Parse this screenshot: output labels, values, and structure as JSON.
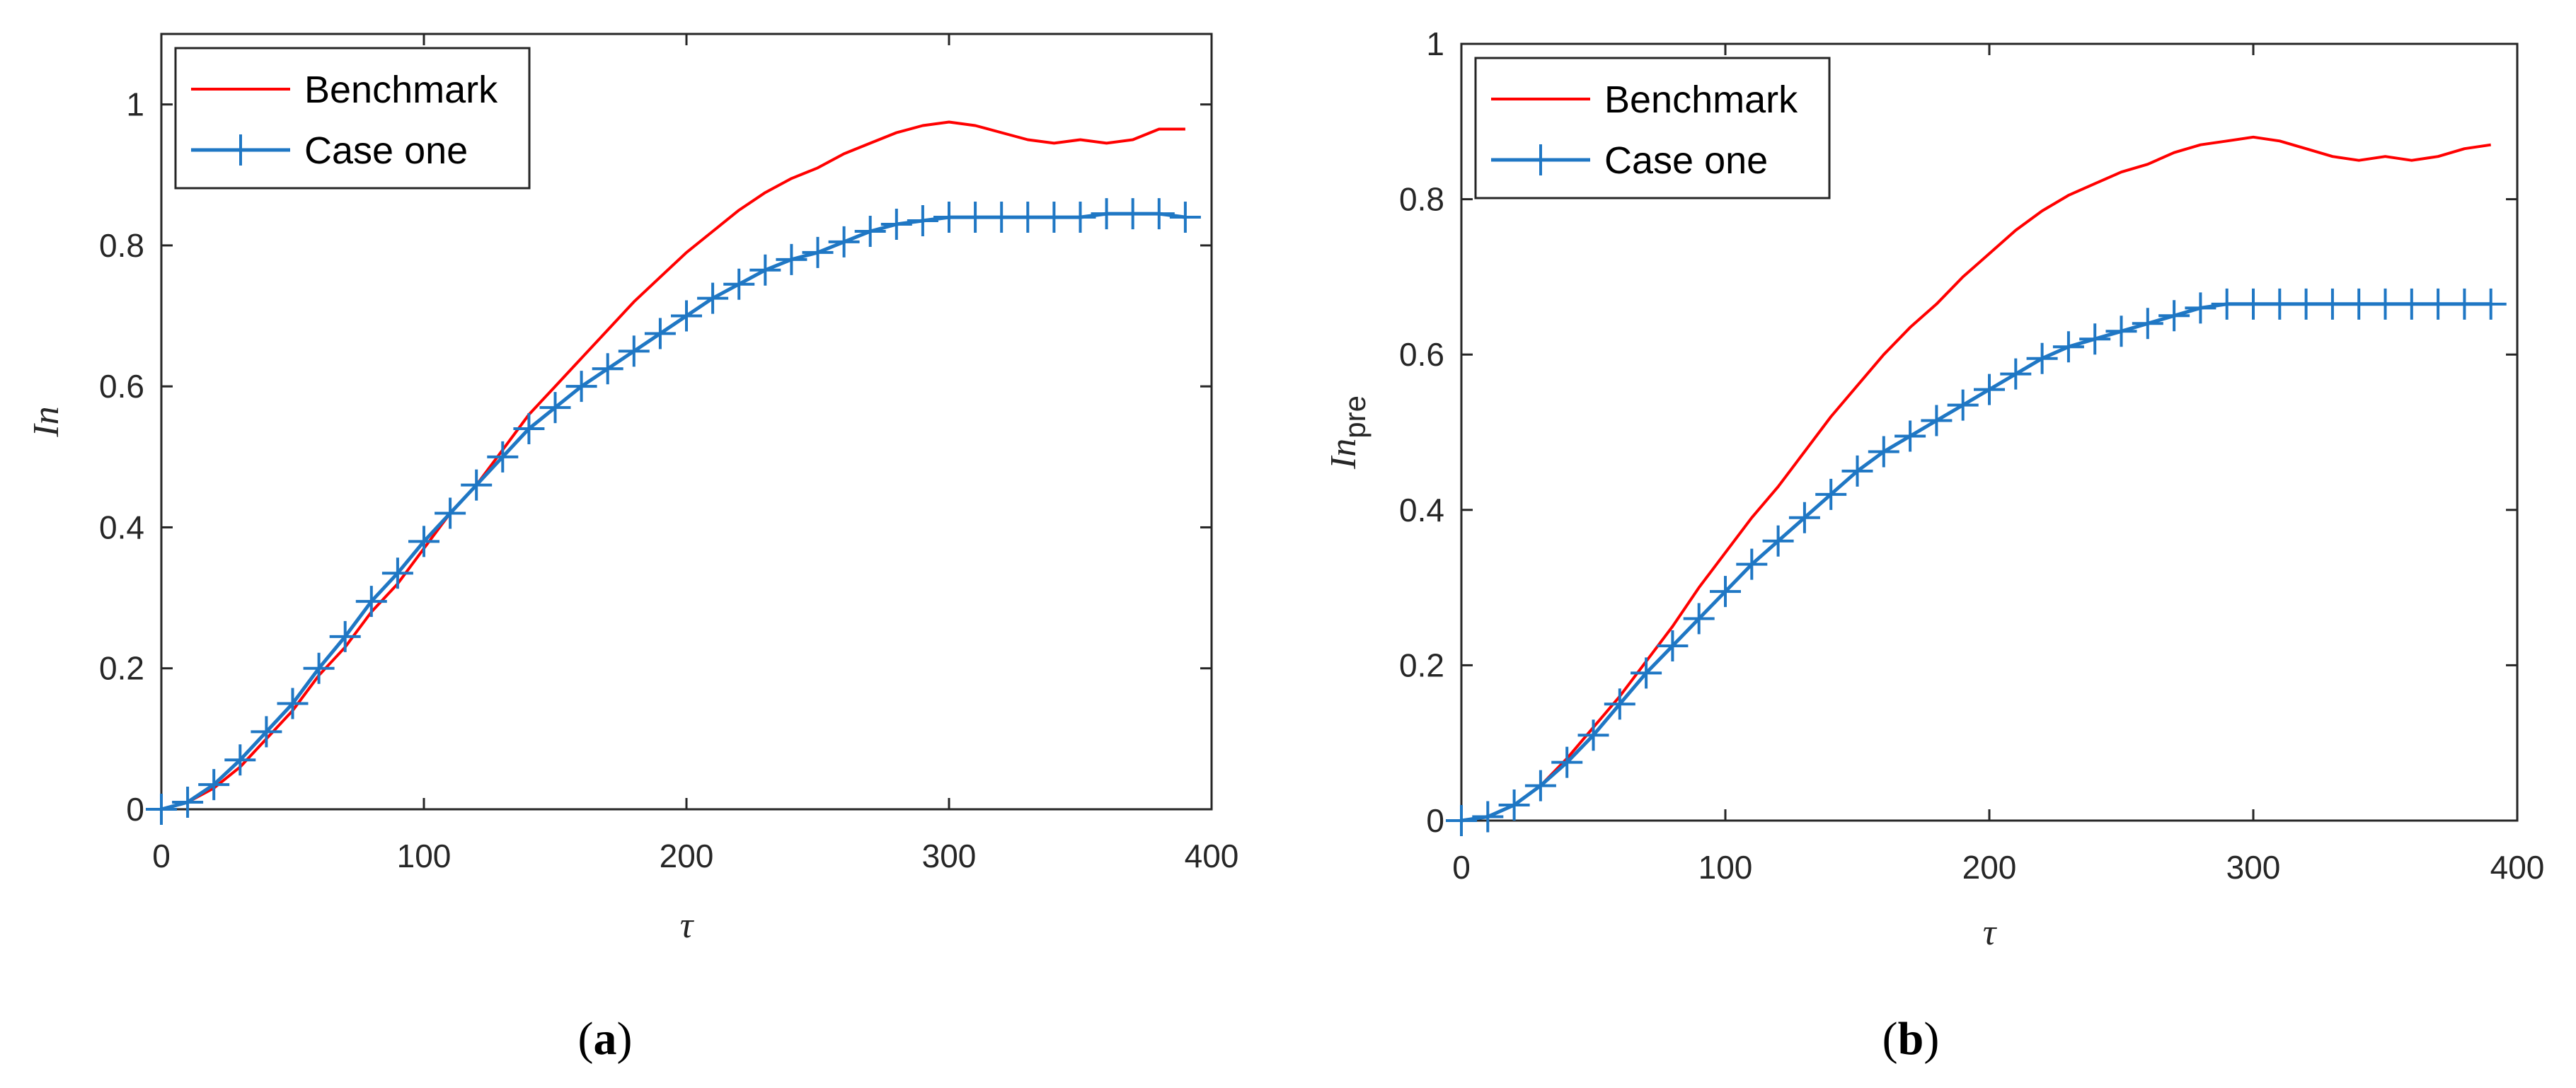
{
  "chart_data": [
    {
      "id": "a",
      "type": "line",
      "caption": {
        "open": "(",
        "letter": "a",
        "close": ")"
      },
      "xlabel": "τ",
      "ylabel": "In",
      "ylabel_sub": "",
      "xlim": [
        0,
        400
      ],
      "ylim": [
        0,
        1.1
      ],
      "xticks": [
        0,
        100,
        200,
        300,
        400
      ],
      "yticks": [
        0,
        0.2,
        0.4,
        0.6,
        0.8,
        1
      ],
      "xtick_labels": [
        "0",
        "100",
        "200",
        "300",
        "400"
      ],
      "ytick_labels": [
        "0",
        "0.2",
        "0.4",
        "0.6",
        "0.8",
        "1"
      ],
      "legend_position": "top-left",
      "series": [
        {
          "name": "Benchmark",
          "color": "#ff0000",
          "marker": "none",
          "x": [
            0,
            10,
            20,
            30,
            40,
            50,
            60,
            70,
            80,
            90,
            100,
            110,
            120,
            130,
            140,
            150,
            160,
            170,
            180,
            190,
            200,
            210,
            220,
            230,
            240,
            250,
            260,
            270,
            280,
            290,
            300,
            310,
            320,
            330,
            340,
            350,
            360,
            370,
            380,
            390
          ],
          "y": [
            0,
            0.01,
            0.03,
            0.06,
            0.1,
            0.14,
            0.19,
            0.23,
            0.28,
            0.32,
            0.37,
            0.42,
            0.46,
            0.51,
            0.56,
            0.6,
            0.64,
            0.68,
            0.72,
            0.755,
            0.79,
            0.82,
            0.85,
            0.875,
            0.895,
            0.91,
            0.93,
            0.945,
            0.96,
            0.97,
            0.975,
            0.97,
            0.96,
            0.95,
            0.945,
            0.95,
            0.945,
            0.95,
            0.965,
            0.965
          ]
        },
        {
          "name": "Case one",
          "color": "#1f77c4",
          "marker": "+",
          "x": [
            0,
            10,
            20,
            30,
            40,
            50,
            60,
            70,
            80,
            90,
            100,
            110,
            120,
            130,
            140,
            150,
            160,
            170,
            180,
            190,
            200,
            210,
            220,
            230,
            240,
            250,
            260,
            270,
            280,
            290,
            300,
            310,
            320,
            330,
            340,
            350,
            360,
            370,
            380,
            390
          ],
          "y": [
            0,
            0.01,
            0.035,
            0.07,
            0.11,
            0.15,
            0.2,
            0.245,
            0.295,
            0.335,
            0.38,
            0.42,
            0.46,
            0.5,
            0.54,
            0.57,
            0.6,
            0.625,
            0.65,
            0.675,
            0.7,
            0.725,
            0.745,
            0.765,
            0.78,
            0.79,
            0.805,
            0.82,
            0.83,
            0.835,
            0.84,
            0.84,
            0.84,
            0.84,
            0.84,
            0.84,
            0.845,
            0.845,
            0.845,
            0.84
          ]
        }
      ]
    },
    {
      "id": "b",
      "type": "line",
      "caption": {
        "open": "(",
        "letter": "b",
        "close": ")"
      },
      "xlabel": "τ",
      "ylabel": "In",
      "ylabel_sub": "pre",
      "xlim": [
        0,
        400
      ],
      "ylim": [
        0,
        1
      ],
      "xticks": [
        0,
        100,
        200,
        300,
        400
      ],
      "yticks": [
        0,
        0.2,
        0.4,
        0.6,
        0.8,
        1
      ],
      "xtick_labels": [
        "0",
        "100",
        "200",
        "300",
        "400"
      ],
      "ytick_labels": [
        "0",
        "0.2",
        "0.4",
        "0.6",
        "0.8",
        "1"
      ],
      "legend_position": "top-left",
      "series": [
        {
          "name": "Benchmark",
          "color": "#ff0000",
          "marker": "none",
          "x": [
            0,
            10,
            20,
            30,
            40,
            50,
            60,
            70,
            80,
            90,
            100,
            110,
            120,
            130,
            140,
            150,
            160,
            170,
            180,
            190,
            200,
            210,
            220,
            230,
            240,
            250,
            260,
            270,
            280,
            290,
            300,
            310,
            320,
            330,
            340,
            350,
            360,
            370,
            380,
            390
          ],
          "y": [
            0,
            0.005,
            0.02,
            0.045,
            0.08,
            0.12,
            0.16,
            0.205,
            0.25,
            0.3,
            0.345,
            0.39,
            0.43,
            0.475,
            0.52,
            0.56,
            0.6,
            0.635,
            0.665,
            0.7,
            0.73,
            0.76,
            0.785,
            0.805,
            0.82,
            0.835,
            0.845,
            0.86,
            0.87,
            0.875,
            0.88,
            0.875,
            0.865,
            0.855,
            0.85,
            0.855,
            0.85,
            0.855,
            0.865,
            0.87
          ]
        },
        {
          "name": "Case one",
          "color": "#1f77c4",
          "marker": "+",
          "x": [
            0,
            10,
            20,
            30,
            40,
            50,
            60,
            70,
            80,
            90,
            100,
            110,
            120,
            130,
            140,
            150,
            160,
            170,
            180,
            190,
            200,
            210,
            220,
            230,
            240,
            250,
            260,
            270,
            280,
            290,
            300,
            310,
            320,
            330,
            340,
            350,
            360,
            370,
            380,
            390
          ],
          "y": [
            0,
            0.005,
            0.02,
            0.045,
            0.075,
            0.11,
            0.15,
            0.19,
            0.225,
            0.26,
            0.295,
            0.33,
            0.36,
            0.39,
            0.42,
            0.45,
            0.475,
            0.495,
            0.515,
            0.535,
            0.555,
            0.575,
            0.595,
            0.61,
            0.62,
            0.63,
            0.64,
            0.65,
            0.66,
            0.665,
            0.665,
            0.665,
            0.665,
            0.665,
            0.665,
            0.665,
            0.665,
            0.665,
            0.665,
            0.665
          ]
        }
      ]
    }
  ]
}
